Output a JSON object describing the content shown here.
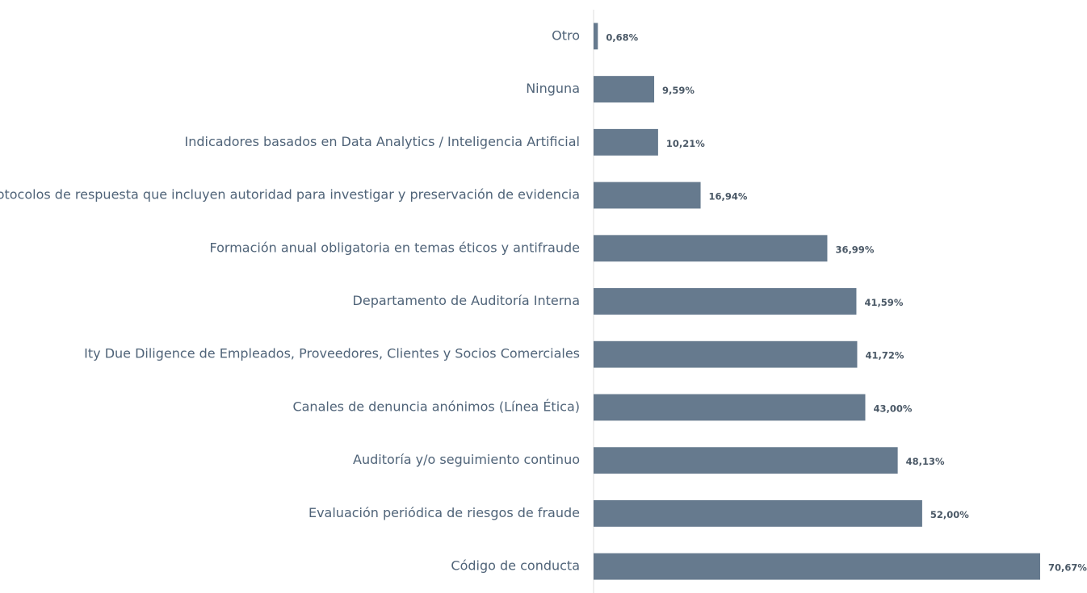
{
  "chart_data": {
    "type": "barh",
    "categories": [
      "Otro",
      "Ninguna",
      "Indicadores basados en Data Analytics / Inteligencia Artificial",
      "Protocolos de respuesta que incluyen autoridad para investigar y preservación de evidencia",
      "Formación anual obligatoria en temas éticos y antifraude",
      "Departamento de Auditoría Interna",
      "Ity Due Diligence de Empleados, Proveedores, Clientes y Socios Comerciales",
      "Canales de denuncia anónimos (Línea Ética)",
      "Auditoría y/o seguimiento continuo",
      "Evaluación periódica de riesgos de fraude",
      "Código de conducta"
    ],
    "values": [
      0.68,
      9.59,
      10.21,
      16.94,
      36.99,
      41.59,
      41.72,
      43.0,
      48.13,
      52.0,
      70.67
    ],
    "value_labels": [
      "0,68%",
      "9,59%",
      "10,21%",
      "16,94%",
      "36,99%",
      "41,59%",
      "41,72%",
      "43,00%",
      "48,13%",
      "52,00%",
      "70,67%"
    ],
    "color": "#667a8e"
  }
}
